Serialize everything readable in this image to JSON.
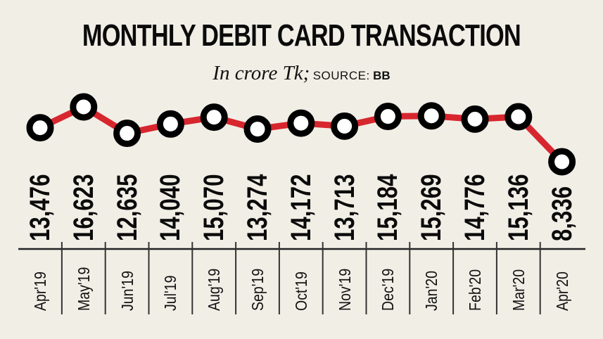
{
  "header": {
    "title": "MONTHLY DEBIT CARD TRANSACTION",
    "unit": "In crore Tk;",
    "source_label": "SOURCE:",
    "source": "BB"
  },
  "colors": {
    "background": "#f1eee6",
    "line": "#d7262e",
    "marker_stroke": "#000000",
    "marker_fill": "#ffffff",
    "text": "#0b0b0b"
  },
  "chart_data": {
    "type": "line",
    "title": "MONTHLY DEBIT CARD TRANSACTION",
    "subtitle": "In crore Tk; SOURCE: BB",
    "xlabel": "",
    "ylabel": "In crore Tk",
    "categories": [
      "Apr'19",
      "May'19",
      "Jun'19",
      "Jul'19",
      "Aug'19",
      "Sep'19",
      "Oct'19",
      "Nov'19",
      "Dec'19",
      "Jan'20",
      "Feb'20",
      "Mar'20",
      "Apr'20"
    ],
    "values": [
      13476,
      16623,
      12635,
      14040,
      15070,
      13274,
      14172,
      13713,
      15184,
      15269,
      14776,
      15136,
      8336
    ],
    "value_labels": [
      "13,476",
      "16,623",
      "12,635",
      "14,040",
      "15,070",
      "13,274",
      "14,172",
      "13,713",
      "15,184",
      "15,269",
      "14,776",
      "15,136",
      "8,336"
    ],
    "grid": false,
    "legend": "none",
    "data_labels": "rotated vertical below markers"
  }
}
